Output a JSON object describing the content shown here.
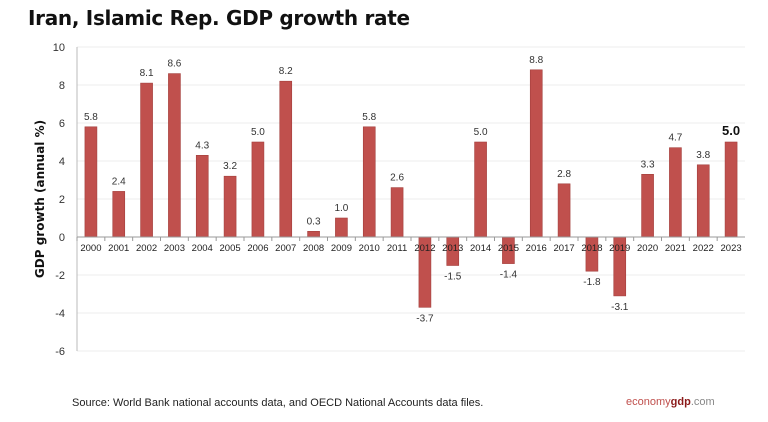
{
  "chart_data": {
    "type": "bar",
    "title": "Iran, Islamic Rep. GDP growth rate",
    "xlabel": "",
    "ylabel": "GDP growth (annual %)",
    "ylim": [
      -6,
      10
    ],
    "yticks": [
      -6,
      -4,
      -2,
      0,
      2,
      4,
      6,
      8,
      10
    ],
    "grid": true,
    "categories": [
      "2000",
      "2001",
      "2002",
      "2003",
      "2004",
      "2005",
      "2006",
      "2007",
      "2008",
      "2009",
      "2010",
      "2011",
      "2012",
      "2013",
      "2014",
      "2015",
      "2016",
      "2017",
      "2018",
      "2019",
      "2020",
      "2021",
      "2022",
      "2023"
    ],
    "values": [
      5.8,
      2.4,
      8.1,
      8.6,
      4.3,
      3.2,
      5.0,
      8.2,
      0.3,
      1.0,
      5.8,
      2.6,
      -3.7,
      -1.5,
      5.0,
      -1.4,
      8.8,
      2.8,
      -1.8,
      -3.1,
      3.3,
      4.7,
      3.8,
      5.0
    ],
    "highlight_last": true,
    "bar_color": "#c0504d"
  },
  "source": "Source: World Bank national accounts data, and OECD National Accounts data files.",
  "logo": {
    "part1": "economy",
    "part2": "gdp",
    "part3": ".com"
  }
}
